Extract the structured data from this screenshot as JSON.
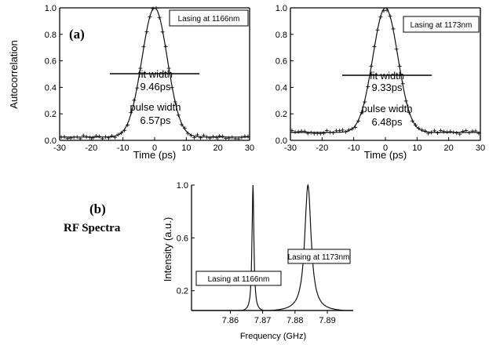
{
  "panel_a_label": "(a)",
  "panel_b_label": "(b)",
  "rf_title": "RF Spectra",
  "chart_data": [
    {
      "type": "line",
      "panel": "(a) left",
      "legend": "Lasing at 1166nm",
      "xlabel": "Time (ps)",
      "ylabel": "Autocorrelation",
      "xlim": [
        -30,
        30
      ],
      "ylim": [
        0.0,
        1.0
      ],
      "xticks": [
        "-30",
        "-20",
        "-10",
        "0",
        "10",
        "20",
        "30"
      ],
      "yticks": [
        "0.0",
        "0.2",
        "0.4",
        "0.6",
        "0.8",
        "1.0"
      ],
      "annotations": [
        "fit width",
        "9.46ps",
        "pulse width",
        "6.57ps"
      ],
      "fit_fwhm_ps": 9.46,
      "pulse_fwhm_ps": 6.57,
      "peak": 1.0,
      "baseline": 0.025
    },
    {
      "type": "line",
      "panel": "(a) right",
      "legend": "Lasing at 1173nm",
      "xlabel": "Time (ps)",
      "ylabel": "",
      "xlim": [
        -30,
        30
      ],
      "ylim": [
        0.0,
        1.0
      ],
      "xticks": [
        "-30",
        "-20",
        "-10",
        "0",
        "10",
        "20",
        "30"
      ],
      "yticks": [
        "0.0",
        "0.2",
        "0.4",
        "0.6",
        "0.8",
        "1.0"
      ],
      "annotations": [
        "fit width",
        "9.33ps",
        "pulse width",
        "6.48ps"
      ],
      "fit_fwhm_ps": 9.33,
      "pulse_fwhm_ps": 6.48,
      "peak": 1.0,
      "baseline": 0.06
    },
    {
      "type": "line",
      "panel": "(b)",
      "xlabel": "Frequency (GHz)",
      "ylabel": "Intensity (a.u.)",
      "xlim": [
        7.848,
        7.898
      ],
      "ylim": [
        0.05,
        1.0
      ],
      "xticks": [
        "7.86",
        "7.87",
        "7.88",
        "7.89"
      ],
      "yticks": [
        "0.2",
        "0.6",
        "1.0"
      ],
      "series": [
        {
          "name": "Lasing at 1166nm",
          "peak_ghz": 7.867,
          "peak": 1.0
        },
        {
          "name": "Lasing at 1173nm",
          "peak_ghz": 7.884,
          "peak": 1.0
        }
      ]
    }
  ]
}
